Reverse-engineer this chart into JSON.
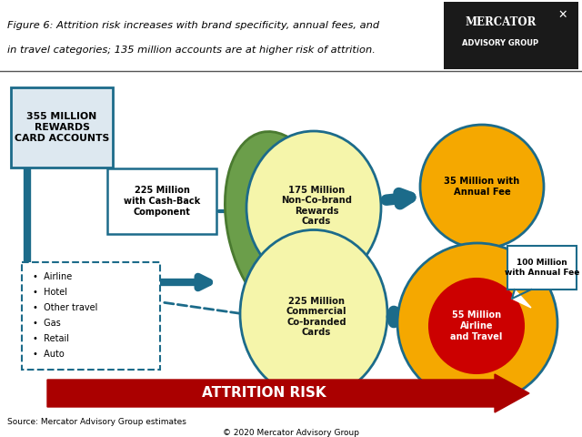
{
  "title_line1": "Figure 6: Attrition risk increases with brand specificity, annual fees, and",
  "title_line2": "in travel categories; 135 million accounts are at higher risk of attrition.",
  "background_color": "#ffffff",
  "main_bg": "#ffffff",
  "logo_text1": "MERCATOR",
  "logo_text2": "ADVISORY GROUP",
  "box355_text": "355 MILLION\nREWARDS\nCARD ACCOUNTS",
  "box225cb_text": "225 Million\nwith Cash-Back\nComponent",
  "text_175": "175 Million\nNon-Co-brand\nRewards\nCards",
  "text_225": "225 Million\nCommercial\nCo-branded\nCards",
  "text_35": "35 Million with\nAnnual Fee",
  "text_55": "55 Million\nAirline\nand Travel",
  "text_100": "100 Million\nwith Annual Fee",
  "bullets": [
    "Airline",
    "Hotel",
    "Other travel",
    "Gas",
    "Retail",
    "Auto"
  ],
  "attrition_text": "ATTRITION RISK",
  "source_text": "Source: Mercator Advisory Group estimates",
  "copyright_text": "© 2020 Mercator Advisory Group",
  "arrow_color": "#1c6b8a",
  "green_ellipse_color": "#6b9e4a",
  "green_ellipse_edge": "#4a7a30",
  "yellow_color": "#f5f5aa",
  "yellow_edge": "#1c6b8a",
  "orange_color": "#f5a800",
  "orange_edge": "#1c6b8a",
  "red_color": "#cc0000",
  "attrition_color": "#aa0000"
}
